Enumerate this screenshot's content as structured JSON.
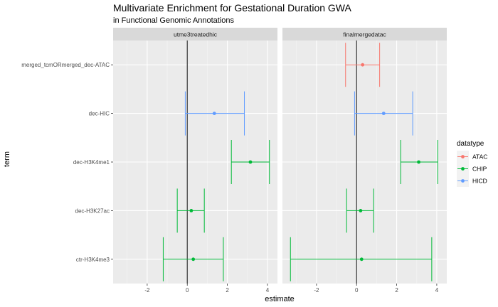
{
  "chart_data": {
    "type": "scatter",
    "title": "Multivariate Enrichment for Gestational Duration GWA",
    "subtitle": "in Functional Genomic Annotations",
    "xlabel": "estimate",
    "ylabel": "term",
    "xlim": [
      -3.7,
      4.5
    ],
    "xticks": [
      -2,
      0,
      2,
      4
    ],
    "grid": true,
    "reference_line_x": 0,
    "legend": {
      "title": "datatype",
      "position": "right",
      "entries": [
        {
          "name": "ATAC",
          "color": "#F8766D"
        },
        {
          "name": "CHIP",
          "color": "#00BA38"
        },
        {
          "name": "HICD",
          "color": "#619CFF"
        }
      ]
    },
    "terms": [
      "merged_tcmORmerged_dec-ATAC",
      "dec-HIC",
      "dec-H3K4me1",
      "dec-H3K27ac",
      "ctr-H3K4me3"
    ],
    "panels": [
      {
        "name": "utme3treatedhic",
        "points": [
          {
            "term": "dec-HIC",
            "datatype": "HICD",
            "estimate": 1.35,
            "lower": -0.1,
            "upper": 2.85
          },
          {
            "term": "dec-H3K4me1",
            "datatype": "CHIP",
            "estimate": 3.15,
            "lower": 2.2,
            "upper": 4.1
          },
          {
            "term": "dec-H3K27ac",
            "datatype": "CHIP",
            "estimate": 0.2,
            "lower": -0.5,
            "upper": 0.85
          },
          {
            "term": "ctr-H3K4me3",
            "datatype": "CHIP",
            "estimate": 0.3,
            "lower": -1.2,
            "upper": 1.8
          }
        ]
      },
      {
        "name": "finalmergedatac",
        "points": [
          {
            "term": "merged_tcmORmerged_dec-ATAC",
            "datatype": "ATAC",
            "estimate": 0.3,
            "lower": -0.55,
            "upper": 1.15
          },
          {
            "term": "dec-HIC",
            "datatype": "HICD",
            "estimate": 1.35,
            "lower": -0.1,
            "upper": 2.8
          },
          {
            "term": "dec-H3K4me1",
            "datatype": "CHIP",
            "estimate": 3.1,
            "lower": 2.2,
            "upper": 4.05
          },
          {
            "term": "dec-H3K27ac",
            "datatype": "CHIP",
            "estimate": 0.2,
            "lower": -0.5,
            "upper": 0.85
          },
          {
            "term": "ctr-H3K4me3",
            "datatype": "CHIP",
            "estimate": 0.25,
            "lower": -3.3,
            "upper": 3.75
          }
        ]
      }
    ]
  }
}
